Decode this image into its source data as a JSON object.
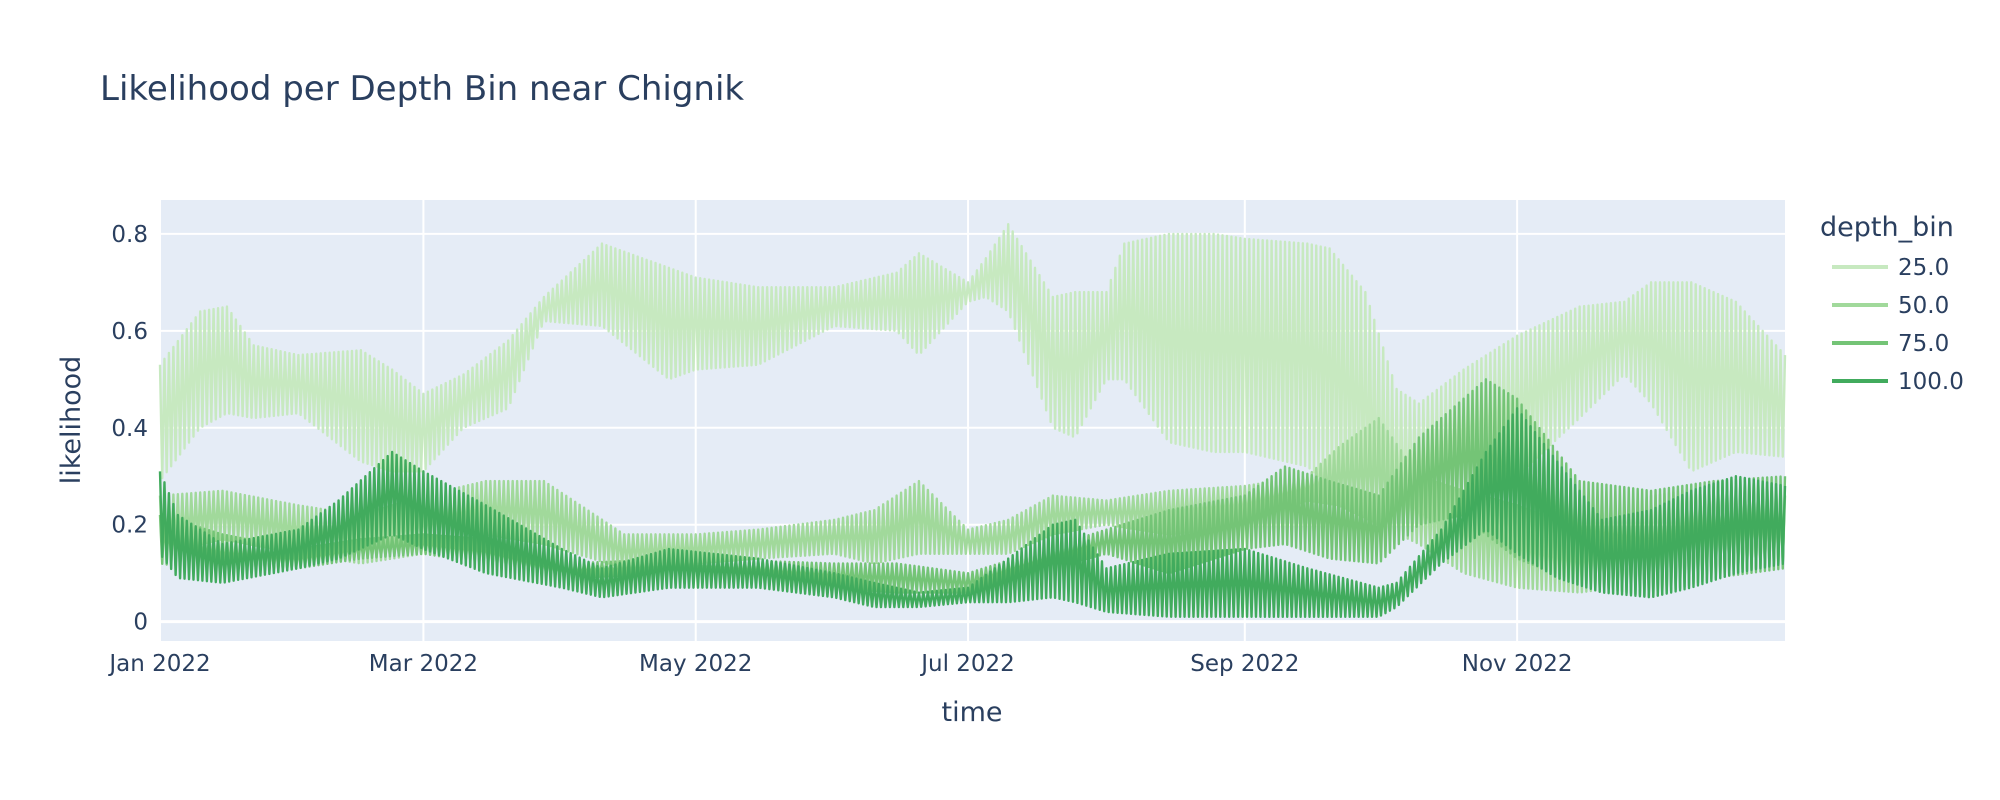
{
  "chart_data": {
    "type": "line",
    "title": "Likelihood per Depth Bin near Chignik",
    "xlabel": "time",
    "ylabel": "likelihood",
    "xlim": [
      "2022-01-01",
      "2022-12-31"
    ],
    "ylim": [
      -0.04,
      0.87
    ],
    "x_ticks": [
      "Jan 2022",
      "Mar 2022",
      "May 2022",
      "Jul 2022",
      "Sep 2022",
      "Nov 2022"
    ],
    "y_ticks": [
      "0",
      "0.2",
      "0.4",
      "0.6",
      "0.8"
    ],
    "grid": true,
    "legend": {
      "title": "depth_bin",
      "position": "right"
    },
    "note": "Each series oscillates daily between an upper and lower envelope; values are envelope estimates read from the figure.",
    "series": [
      {
        "name": "25.0",
        "color": "#c7e9c0",
        "x": [
          "2022-01-01",
          "2022-01-10",
          "2022-01-16",
          "2022-01-22",
          "2022-02-01",
          "2022-02-15",
          "2022-02-22",
          "2022-03-01",
          "2022-03-10",
          "2022-03-20",
          "2022-03-28",
          "2022-04-10",
          "2022-04-25",
          "2022-05-01",
          "2022-05-15",
          "2022-06-01",
          "2022-06-15",
          "2022-06-20",
          "2022-07-01",
          "2022-07-05",
          "2022-07-10",
          "2022-07-20",
          "2022-07-25",
          "2022-08-01",
          "2022-08-05",
          "2022-08-15",
          "2022-08-25",
          "2022-09-01",
          "2022-09-15",
          "2022-09-20",
          "2022-09-28",
          "2022-10-05",
          "2022-10-10",
          "2022-10-20",
          "2022-11-01",
          "2022-11-15",
          "2022-11-25",
          "2022-12-01",
          "2022-12-10",
          "2022-12-20",
          "2022-12-31"
        ],
        "upper": [
          0.53,
          0.64,
          0.65,
          0.57,
          0.55,
          0.56,
          0.52,
          0.47,
          0.51,
          0.58,
          0.67,
          0.78,
          0.73,
          0.71,
          0.69,
          0.69,
          0.72,
          0.76,
          0.7,
          0.75,
          0.82,
          0.67,
          0.68,
          0.68,
          0.78,
          0.8,
          0.8,
          0.79,
          0.78,
          0.77,
          0.68,
          0.48,
          0.45,
          0.52,
          0.59,
          0.65,
          0.66,
          0.7,
          0.7,
          0.66,
          0.55
        ],
        "lower": [
          0.29,
          0.4,
          0.43,
          0.42,
          0.43,
          0.33,
          0.31,
          0.31,
          0.4,
          0.44,
          0.62,
          0.61,
          0.5,
          0.52,
          0.53,
          0.61,
          0.6,
          0.55,
          0.66,
          0.67,
          0.64,
          0.4,
          0.38,
          0.5,
          0.5,
          0.37,
          0.35,
          0.35,
          0.32,
          0.28,
          0.22,
          0.17,
          0.19,
          0.25,
          0.3,
          0.42,
          0.51,
          0.45,
          0.31,
          0.35,
          0.34
        ]
      },
      {
        "name": "50.0",
        "color": "#a1d99b",
        "x": [
          "2022-01-01",
          "2022-01-15",
          "2022-02-01",
          "2022-02-15",
          "2022-03-01",
          "2022-03-15",
          "2022-03-28",
          "2022-04-15",
          "2022-05-01",
          "2022-05-15",
          "2022-06-01",
          "2022-06-10",
          "2022-06-20",
          "2022-07-01",
          "2022-07-10",
          "2022-07-20",
          "2022-08-01",
          "2022-08-15",
          "2022-09-01",
          "2022-09-15",
          "2022-09-22",
          "2022-10-01",
          "2022-10-10",
          "2022-10-20",
          "2022-11-01",
          "2022-11-15",
          "2022-12-01",
          "2022-12-15",
          "2022-12-31"
        ],
        "upper": [
          0.26,
          0.27,
          0.24,
          0.22,
          0.26,
          0.29,
          0.29,
          0.18,
          0.18,
          0.19,
          0.21,
          0.23,
          0.29,
          0.19,
          0.21,
          0.26,
          0.25,
          0.27,
          0.28,
          0.3,
          0.36,
          0.42,
          0.3,
          0.27,
          0.24,
          0.19,
          0.26,
          0.28,
          0.26
        ],
        "lower": [
          0.14,
          0.17,
          0.14,
          0.12,
          0.14,
          0.18,
          0.16,
          0.11,
          0.12,
          0.13,
          0.14,
          0.12,
          0.14,
          0.14,
          0.14,
          0.18,
          0.2,
          0.18,
          0.2,
          0.25,
          0.24,
          0.2,
          0.16,
          0.1,
          0.07,
          0.06,
          0.08,
          0.1,
          0.12
        ]
      },
      {
        "name": "75.0",
        "color": "#74c476",
        "x": [
          "2022-01-01",
          "2022-01-15",
          "2022-02-01",
          "2022-02-15",
          "2022-03-01",
          "2022-03-15",
          "2022-04-01",
          "2022-05-01",
          "2022-06-01",
          "2022-06-15",
          "2022-07-01",
          "2022-07-15",
          "2022-08-01",
          "2022-08-15",
          "2022-09-01",
          "2022-09-10",
          "2022-09-20",
          "2022-10-01",
          "2022-10-10",
          "2022-10-20",
          "2022-10-25",
          "2022-11-01",
          "2022-11-15",
          "2022-12-01",
          "2022-12-15",
          "2022-12-31"
        ],
        "upper": [
          0.22,
          0.18,
          0.15,
          0.17,
          0.18,
          0.17,
          0.12,
          0.13,
          0.12,
          0.12,
          0.1,
          0.14,
          0.19,
          0.23,
          0.26,
          0.32,
          0.29,
          0.26,
          0.38,
          0.46,
          0.5,
          0.46,
          0.29,
          0.27,
          0.29,
          0.3
        ],
        "lower": [
          0.12,
          0.1,
          0.11,
          0.13,
          0.14,
          0.12,
          0.09,
          0.1,
          0.07,
          0.06,
          0.06,
          0.1,
          0.14,
          0.1,
          0.15,
          0.16,
          0.13,
          0.12,
          0.2,
          0.22,
          0.18,
          0.13,
          0.08,
          0.05,
          0.09,
          0.11
        ]
      },
      {
        "name": "100.0",
        "color": "#41ab5d",
        "x": [
          "2022-01-01",
          "2022-01-05",
          "2022-01-15",
          "2022-02-01",
          "2022-02-10",
          "2022-02-22",
          "2022-03-01",
          "2022-03-15",
          "2022-04-01",
          "2022-04-10",
          "2022-04-25",
          "2022-05-15",
          "2022-06-01",
          "2022-06-10",
          "2022-06-20",
          "2022-07-01",
          "2022-07-10",
          "2022-07-20",
          "2022-07-25",
          "2022-08-01",
          "2022-08-15",
          "2022-09-01",
          "2022-09-15",
          "2022-10-01",
          "2022-10-05",
          "2022-10-15",
          "2022-10-25",
          "2022-11-01",
          "2022-11-10",
          "2022-11-20",
          "2022-12-01",
          "2022-12-10",
          "2022-12-20",
          "2022-12-31"
        ],
        "upper": [
          0.31,
          0.22,
          0.16,
          0.19,
          0.25,
          0.35,
          0.31,
          0.24,
          0.15,
          0.11,
          0.15,
          0.13,
          0.1,
          0.08,
          0.06,
          0.07,
          0.13,
          0.2,
          0.21,
          0.11,
          0.14,
          0.15,
          0.11,
          0.07,
          0.08,
          0.19,
          0.35,
          0.44,
          0.33,
          0.21,
          0.23,
          0.27,
          0.3,
          0.28
        ],
        "lower": [
          0.14,
          0.09,
          0.08,
          0.11,
          0.13,
          0.18,
          0.15,
          0.1,
          0.07,
          0.05,
          0.07,
          0.07,
          0.05,
          0.03,
          0.03,
          0.04,
          0.04,
          0.05,
          0.04,
          0.02,
          0.01,
          0.01,
          0.01,
          0.01,
          0.03,
          0.12,
          0.19,
          0.14,
          0.09,
          0.06,
          0.05,
          0.07,
          0.1,
          0.12
        ]
      }
    ]
  }
}
